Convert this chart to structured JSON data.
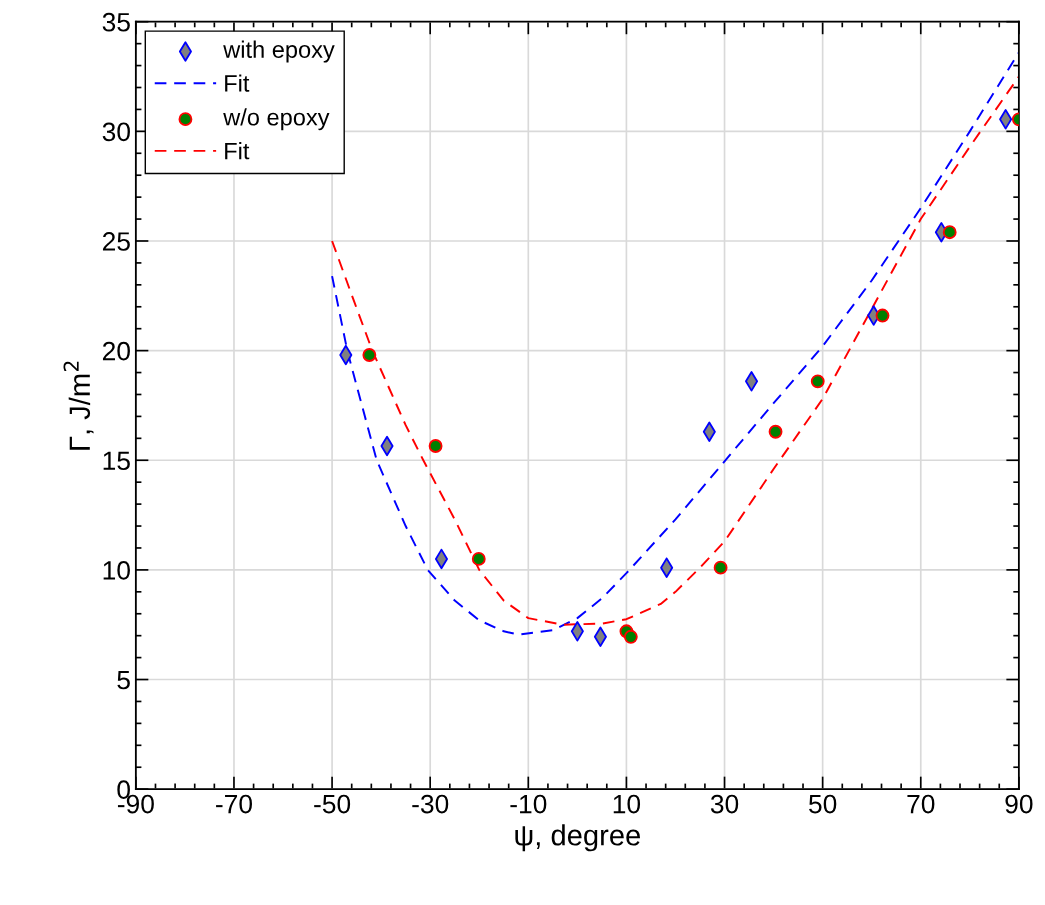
{
  "chart_data": {
    "type": "scatter",
    "xlabel": "ψ, degree",
    "ylabel": "Γ, J/m$^{2}$",
    "xlim": [
      -90,
      90
    ],
    "xticks": [
      -90,
      -70,
      -50,
      -30,
      -10,
      10,
      30,
      50,
      70,
      90
    ],
    "ylim": [
      0,
      35
    ],
    "yticks": [
      0,
      5,
      10,
      15,
      20,
      25,
      30,
      35
    ],
    "grid": true,
    "legend": "top left",
    "series": [
      {
        "name": "with epoxy",
        "marker": "diamond",
        "color": "#808080",
        "x": [
          -47.2,
          -38.8,
          -27.7,
          0,
          4.7,
          18.2,
          26.9,
          35.5,
          60.4,
          74.2,
          87.3
        ],
        "values": [
          19.8,
          15.65,
          10.5,
          7.2,
          6.95,
          10.1,
          16.3,
          18.6,
          21.6,
          25.4,
          30.55
        ]
      },
      {
        "name": "Fit",
        "type": "line",
        "line_style": "dashed",
        "marker": "none",
        "color": "#0000ff",
        "x": [
          -50,
          -46.9,
          -45,
          -40.9,
          -35,
          -30.5,
          -25,
          -20,
          -15,
          -12,
          -5,
          0,
          5,
          10,
          20,
          30,
          40,
          50,
          60,
          70,
          80,
          90
        ],
        "values": [
          23.4,
          20,
          18.4,
          15,
          12,
          10,
          8.6,
          7.7,
          7.2,
          7.05,
          7.25,
          7.8,
          8.7,
          9.85,
          12.3,
          14.95,
          17.6,
          20.2,
          23.2,
          26.5,
          30,
          33.6
        ]
      },
      {
        "name": "w/o epoxy",
        "marker": "circle",
        "color": "#008000",
        "x": [
          -42.4,
          -28.9,
          -20.1,
          10,
          10.9,
          29.2,
          40.4,
          49,
          62.2,
          75.9,
          90
        ],
        "values": [
          19.8,
          15.65,
          10.5,
          7.2,
          6.95,
          10.1,
          16.3,
          18.6,
          21.6,
          25.4,
          30.55
        ]
      },
      {
        "name": "Fit",
        "type": "line",
        "line_style": "dashed",
        "marker": "none",
        "color": "#ff0000",
        "x": [
          -50,
          -45.6,
          -41.8,
          -35,
          -31.4,
          -25,
          -20,
          -15,
          -10,
          -3,
          5,
          10,
          17,
          20,
          25,
          30,
          40,
          50,
          60,
          70,
          80,
          90
        ],
        "values": [
          25,
          22.3,
          20,
          16.6,
          15,
          12.3,
          10,
          8.6,
          7.8,
          7.5,
          7.55,
          7.75,
          8.45,
          9,
          10.1,
          11.3,
          14.6,
          17.8,
          21.9,
          26,
          29.3,
          32.5
        ]
      }
    ]
  }
}
